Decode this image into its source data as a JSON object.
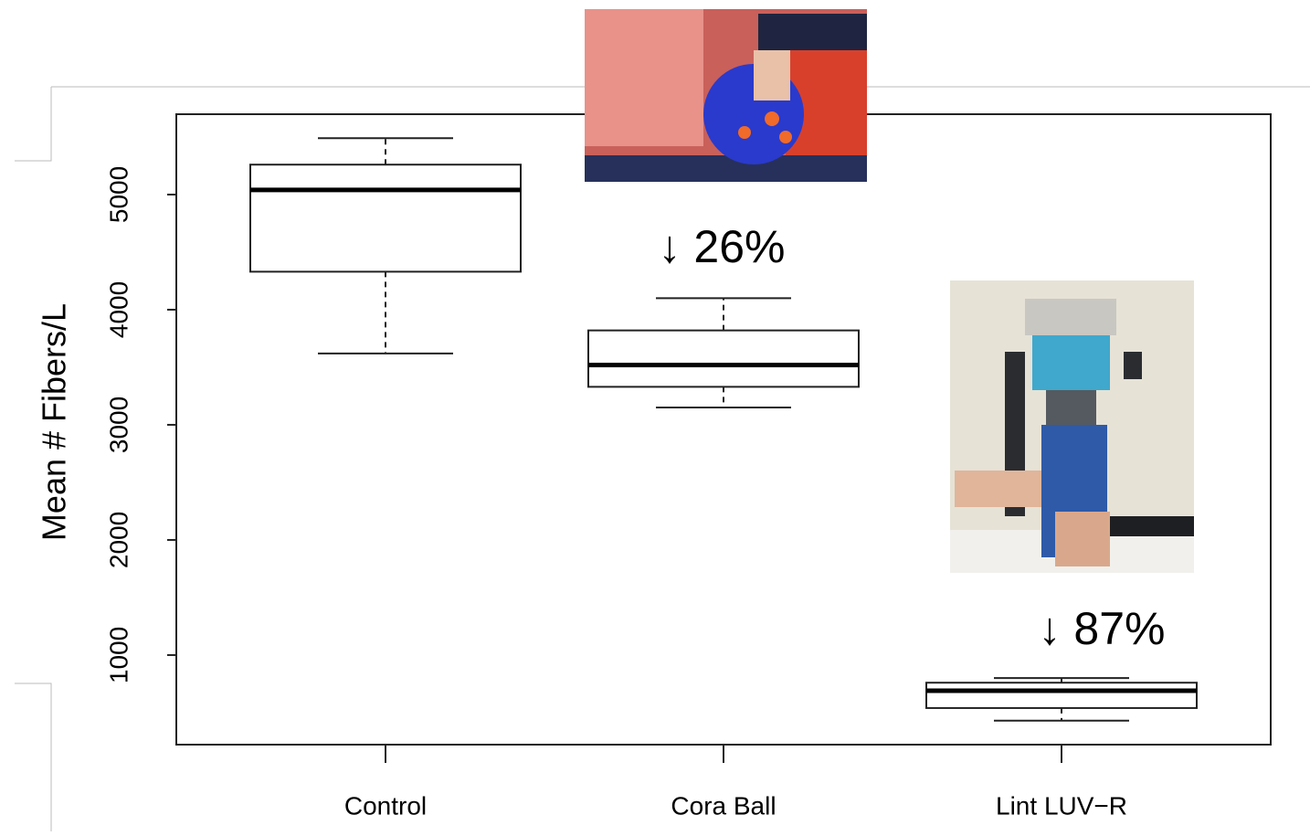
{
  "chart_data": {
    "type": "box",
    "y_label": "Mean # Fibers/L",
    "categories": [
      "Control",
      "Cora Ball",
      "Lint LUV−R"
    ],
    "min": [
      3620,
      3150,
      430
    ],
    "q1": [
      4330,
      3330,
      540
    ],
    "median": [
      5040,
      3520,
      690
    ],
    "q3": [
      5260,
      3820,
      760
    ],
    "max": [
      5490,
      4100,
      800
    ],
    "annotations": [
      "↓ 26%",
      "↓ 87%"
    ],
    "ylim": [
      222,
      5698
    ],
    "yticks": [
      1000,
      2000,
      3000,
      4000,
      5000
    ]
  }
}
